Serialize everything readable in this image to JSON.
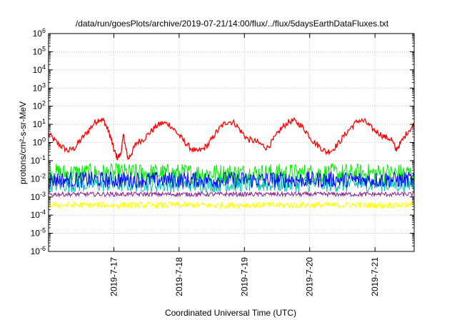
{
  "chart_data": {
    "type": "line",
    "title": "/data/run/goesPlots/archive/2019-07-21/14:00/flux/../flux/5daysEarthDataFluxes.txt",
    "xlabel": "Coordinated Universal Time (UTC)",
    "ylabel": "protons/cm²-s-sr-MeV",
    "y_scale": "log",
    "ylim_exp": [
      -6,
      6
    ],
    "y_tick_exponents": [
      -6,
      -5,
      -4,
      -3,
      -2,
      -1,
      0,
      1,
      2,
      3,
      4,
      5,
      6
    ],
    "y_tick_labels": [
      "10-6",
      "10-5",
      "10-4",
      "10-3",
      "10-2",
      "10-1",
      "100",
      "101",
      "102",
      "103",
      "104",
      "105",
      "106"
    ],
    "x_range_days": [
      0,
      5.6
    ],
    "x_ticks": [
      {
        "day": 1.0,
        "label": "2019-7-17"
      },
      {
        "day": 2.0,
        "label": "2019-7-18"
      },
      {
        "day": 3.0,
        "label": "2019-7-19"
      },
      {
        "day": 4.0,
        "label": "2019-7-20"
      },
      {
        "day": 5.0,
        "label": "2019-7-21"
      }
    ],
    "grid": true,
    "series": [
      {
        "color": "#ff0000",
        "style": "line",
        "points": [
          [
            0.0,
            3.0
          ],
          [
            0.1,
            1.2
          ],
          [
            0.2,
            0.6
          ],
          [
            0.3,
            0.35
          ],
          [
            0.4,
            0.5
          ],
          [
            0.5,
            1.5
          ],
          [
            0.6,
            4.0
          ],
          [
            0.7,
            12.0
          ],
          [
            0.78,
            20.0
          ],
          [
            0.85,
            15.0
          ],
          [
            0.9,
            6.0
          ],
          [
            0.95,
            2.0
          ],
          [
            1.0,
            0.4
          ],
          [
            1.05,
            0.15
          ],
          [
            1.1,
            0.2
          ],
          [
            1.15,
            2.5
          ],
          [
            1.18,
            0.5
          ],
          [
            1.22,
            0.12
          ],
          [
            1.28,
            0.3
          ],
          [
            1.35,
            1.0
          ],
          [
            1.45,
            1.5
          ],
          [
            1.55,
            3.5
          ],
          [
            1.65,
            8.0
          ],
          [
            1.75,
            12.0
          ],
          [
            1.85,
            10.0
          ],
          [
            1.95,
            4.0
          ],
          [
            2.05,
            1.5
          ],
          [
            2.15,
            0.6
          ],
          [
            2.25,
            0.3
          ],
          [
            2.35,
            0.4
          ],
          [
            2.45,
            0.8
          ],
          [
            2.55,
            3.0
          ],
          [
            2.65,
            8.0
          ],
          [
            2.75,
            15.0
          ],
          [
            2.85,
            12.0
          ],
          [
            2.95,
            4.0
          ],
          [
            3.05,
            1.5
          ],
          [
            3.15,
            1.2
          ],
          [
            3.25,
            0.8
          ],
          [
            3.35,
            0.5
          ],
          [
            3.45,
            1.5
          ],
          [
            3.55,
            5.0
          ],
          [
            3.65,
            12.0
          ],
          [
            3.75,
            16.0
          ],
          [
            3.85,
            10.0
          ],
          [
            3.95,
            4.0
          ],
          [
            4.05,
            1.2
          ],
          [
            4.15,
            0.6
          ],
          [
            4.25,
            0.3
          ],
          [
            4.35,
            0.4
          ],
          [
            4.45,
            1.0
          ],
          [
            4.55,
            3.0
          ],
          [
            4.65,
            8.0
          ],
          [
            4.75,
            17.0
          ],
          [
            4.85,
            14.0
          ],
          [
            4.95,
            6.0
          ],
          [
            5.05,
            3.5
          ],
          [
            5.15,
            2.0
          ],
          [
            5.25,
            1.5
          ],
          [
            5.32,
            0.4
          ],
          [
            5.4,
            1.0
          ],
          [
            5.5,
            4.0
          ],
          [
            5.6,
            10.0
          ]
        ]
      },
      {
        "color": "#00ee00",
        "style": "noise",
        "base_exp": -1.7,
        "amplitude": 0.55
      },
      {
        "color": "#00bfb0",
        "style": "noise",
        "base_exp": -2.3,
        "amplitude": 0.45
      },
      {
        "color": "#0000ff",
        "style": "noise",
        "base_exp": -2.05,
        "amplitude": 0.45
      },
      {
        "color": "#8b1a8b",
        "style": "noise",
        "base_exp": -2.85,
        "amplitude": 0.12
      },
      {
        "color": "#ffff00",
        "style": "noise",
        "base_exp": -3.45,
        "amplitude": 0.18
      }
    ]
  }
}
